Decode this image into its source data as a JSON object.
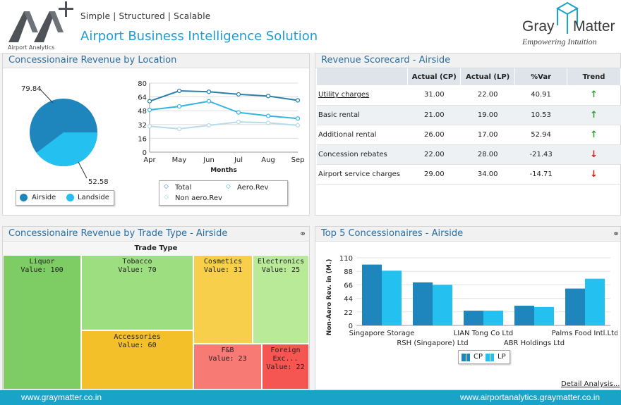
{
  "header": {
    "logo_caption": "Airport Analytics",
    "tagline": "Simple | Structured | Scalable",
    "title": "Airport Business Intelligence Solution",
    "partner_gray": "Gray",
    "partner_matter": "Matter",
    "partner_subtitle": "Empowering Intuition",
    "logo_mark": "AA"
  },
  "panels": {
    "location": {
      "title": "Concessionaire Revenue by Location"
    },
    "scorecard": {
      "title": "Revenue Scorecard - Airside"
    },
    "trade_type": {
      "title": "Concessionaire Revenue by Trade Type - Airside"
    },
    "top5": {
      "title": "Top 5 Concessionaires - Airside"
    }
  },
  "pie": {
    "label_airside": "79.84",
    "label_landside": "52.58",
    "legend": [
      "Airside",
      "Landside"
    ],
    "colors": {
      "airside": "#1e86bd",
      "landside": "#24c0ef"
    }
  },
  "line_chart_legend": [
    "Total",
    "Aero.Rev",
    "Non aero.Rev"
  ],
  "scorecard": {
    "headers": [
      "",
      "Actual (CP)",
      "Actual (LP)",
      "%Var",
      "Trend"
    ],
    "rows": [
      {
        "label": "Utility charges",
        "cp": "31.00",
        "lp": "22.00",
        "var": "40.91",
        "trend": "↑"
      },
      {
        "label": "Basic rental",
        "cp": "21.00",
        "lp": "19.00",
        "var": "10.53",
        "trend": "↑"
      },
      {
        "label": "Additional rental",
        "cp": "26.00",
        "lp": "17.00",
        "var": "52.94",
        "trend": "↑"
      },
      {
        "label": "Concession rebates",
        "cp": "22.00",
        "lp": "28.00",
        "var": "-21.43",
        "trend": "↓"
      },
      {
        "label": "Airport service charges",
        "cp": "29.00",
        "lp": "34.00",
        "var": "-14.71",
        "trend": "↓"
      }
    ]
  },
  "treemap": {
    "header": "Trade Type",
    "value_prefix": "Value:",
    "cells": [
      {
        "name": "Liquor",
        "value": 100,
        "color": "#7dcc64"
      },
      {
        "name": "Tobacco",
        "value": 70,
        "color": "#9ddf80"
      },
      {
        "name": "Accessories",
        "value": 60,
        "color": "#f4c02a"
      },
      {
        "name": "Cosmetics",
        "value": 31,
        "color": "#f7cf4a"
      },
      {
        "name": "Electronics",
        "value": 25,
        "color": "#b8ea98"
      },
      {
        "name": "F&B",
        "value": 23,
        "color": "#f77a74"
      },
      {
        "name": "Foreign Exc...",
        "value": 22,
        "color": "#f55652"
      }
    ]
  },
  "links": {
    "detail": "Detail Analysis..."
  },
  "footer": {
    "left": "www.graymatter.co.in",
    "right": "www.airportanalytics.graymatter.co.in"
  },
  "chart_data": [
    {
      "type": "pie",
      "categories": [
        "Airside",
        "Landside"
      ],
      "values": [
        79.84,
        52.58
      ]
    },
    {
      "type": "line",
      "x": [
        "Apr",
        "May",
        "Jun",
        "Jul",
        "Aug",
        "Sep"
      ],
      "xlabel": "Months",
      "ylabel": "",
      "ylim": [
        0,
        80
      ],
      "yticks": [
        0,
        16,
        32,
        48,
        64,
        80
      ],
      "series": [
        {
          "name": "Total",
          "values": [
            59,
            71,
            70,
            67,
            65,
            60
          ],
          "color": "#2b7fa8"
        },
        {
          "name": "Aero.Rev",
          "values": [
            49,
            53,
            59,
            46,
            42,
            39
          ],
          "color": "#38b4df"
        },
        {
          "name": "Non aero.Rev",
          "values": [
            30,
            27,
            31,
            35,
            34,
            31
          ],
          "color": "#b7dbe8"
        }
      ]
    },
    {
      "type": "bar",
      "categories": [
        "Singapore Storage",
        "RSH (Singapore) Ltd",
        "LIAN Tong Co Ltd",
        "ABR Holdings Ltd",
        "Palms Food Intl.Ltd"
      ],
      "ylabel": "Non-Aero Rev. in (M.)",
      "ylim": [
        0,
        110
      ],
      "yticks": [
        0,
        22,
        44,
        66,
        88,
        110
      ],
      "series": [
        {
          "name": "CP",
          "values": [
            99,
            70,
            24,
            32,
            60
          ],
          "color": "#1e86bd"
        },
        {
          "name": "LP",
          "values": [
            89,
            66,
            24,
            30,
            76
          ],
          "color": "#24c0ef"
        }
      ]
    }
  ]
}
